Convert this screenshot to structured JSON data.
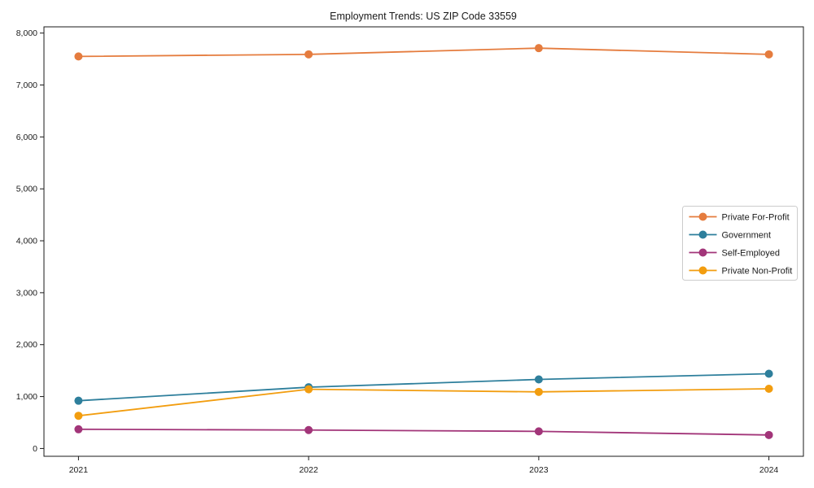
{
  "figure": {
    "background": "#ffffff"
  },
  "chart_data": {
    "type": "line",
    "title": "Employment Trends: US ZIP Code 33559",
    "xlabel": "",
    "ylabel": "",
    "categories": [
      "2021",
      "2022",
      "2023",
      "2024"
    ],
    "series": [
      {
        "name": "Private For-Profit",
        "color": "#e57c3e",
        "values": [
          7550,
          7590,
          7710,
          7590
        ]
      },
      {
        "name": "Government",
        "color": "#2e7f9c",
        "values": [
          920,
          1180,
          1330,
          1440
        ]
      },
      {
        "name": "Self-Employed",
        "color": "#a23579",
        "values": [
          370,
          355,
          330,
          260
        ]
      },
      {
        "name": "Private Non-Profit",
        "color": "#f29d0f",
        "values": [
          630,
          1140,
          1090,
          1150
        ]
      }
    ],
    "yticks": [
      0,
      1000,
      2000,
      3000,
      4000,
      5000,
      6000,
      7000,
      8000
    ],
    "ytick_labels": [
      "0",
      "1,000",
      "2,000",
      "3,000",
      "4,000",
      "5,000",
      "6,000",
      "7,000",
      "8,000"
    ],
    "ylim": [
      -150,
      8120
    ],
    "xlim_index": [
      -0.15,
      3.15
    ],
    "grid": false,
    "legend_position": "center right",
    "marker": "circle",
    "axis_color": "#1a1a1a",
    "legend_border_color": "#cccccc"
  }
}
